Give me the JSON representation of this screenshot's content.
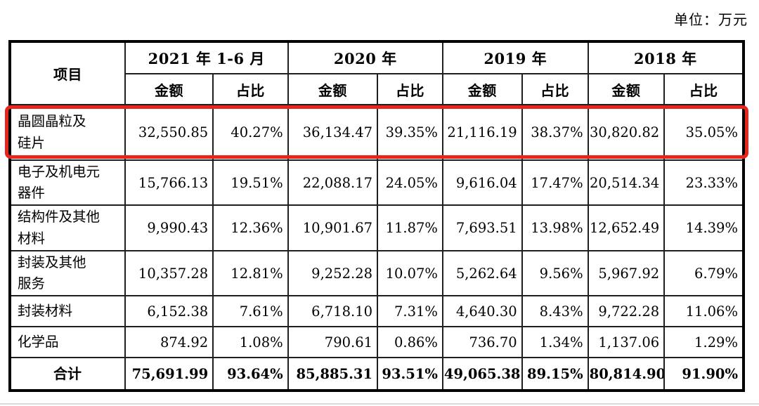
{
  "unit_label": "单位：万元",
  "colors": {
    "highlight": "#e8251d",
    "table_border": "#000000"
  },
  "table": {
    "item_header": "项目",
    "year_groups": [
      {
        "label": "2021 年 1-6 月"
      },
      {
        "label": "2020 年"
      },
      {
        "label": "2019 年"
      },
      {
        "label": "2018 年"
      }
    ],
    "sub_headers": [
      "金额",
      "占比",
      "金额",
      "占比",
      "金额",
      "占比",
      "金额",
      "占比"
    ],
    "rows": [
      {
        "item": "晶圆晶粒及\n硅片",
        "highlighted": true,
        "values": [
          "32,550.85",
          "40.27%",
          "36,134.47",
          "39.35%",
          "21,116.19",
          "38.37%",
          "30,820.82",
          "35.05%"
        ]
      },
      {
        "item": "电子及机电元\n器件",
        "highlighted": false,
        "values": [
          "15,766.13",
          "19.51%",
          "22,088.17",
          "24.05%",
          "9,616.04",
          "17.47%",
          "20,514.34",
          "23.33%"
        ]
      },
      {
        "item": "结构件及其他\n材料",
        "highlighted": false,
        "values": [
          "9,990.43",
          "12.36%",
          "10,901.67",
          "11.87%",
          "7,693.51",
          "13.98%",
          "12,652.49",
          "14.39%"
        ]
      },
      {
        "item": "封装及其他\n服务",
        "highlighted": false,
        "values": [
          "10,357.28",
          "12.81%",
          "9,252.28",
          "10.07%",
          "5,262.64",
          "9.56%",
          "5,967.92",
          "6.79%"
        ]
      },
      {
        "item": "封装材料",
        "highlighted": false,
        "values": [
          "6,152.38",
          "7.61%",
          "6,718.10",
          "7.31%",
          "4,640.30",
          "8.43%",
          "9,722.28",
          "11.06%"
        ]
      },
      {
        "item": "化学品",
        "highlighted": false,
        "values": [
          "874.92",
          "1.08%",
          "790.61",
          "0.86%",
          "736.70",
          "1.34%",
          "1,137.06",
          "1.29%"
        ]
      }
    ],
    "total_row": {
      "item": "合计",
      "values": [
        "75,691.99",
        "93.64%",
        "85,885.31",
        "93.51%",
        "49,065.38",
        "89.15%",
        "80,814.90",
        "91.90%"
      ]
    }
  }
}
